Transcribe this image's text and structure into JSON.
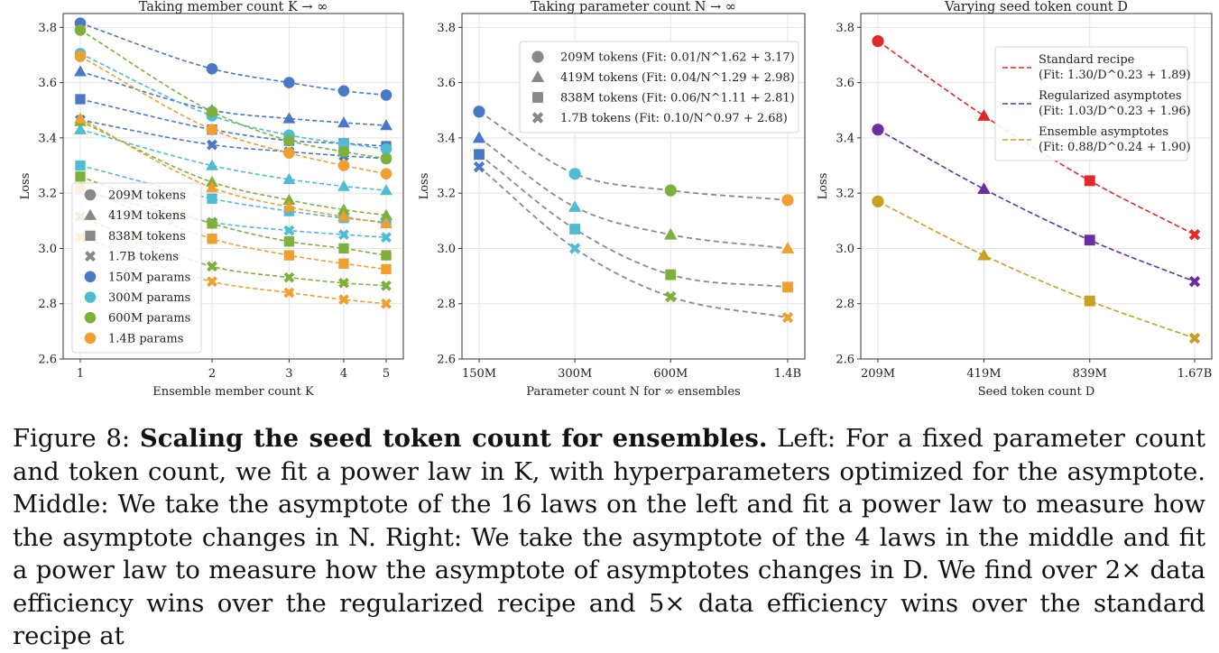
{
  "figure": {
    "label": "Figure 8:",
    "title": "Scaling the seed token count for ensembles.",
    "caption": "Left: For a fixed parameter count and token count, we fit a power law in K, with hyperparameters optimized for the asymptote. Middle: We take the asymptote of the 16 laws on the left and fit a power law to measure how the asymptote changes in N. Right: We take the asymptote of the 4 laws in the middle and fit a power law to measure how the asymptote of asymptotes changes in D. We find over 2× data efficiency wins over the regularized recipe and 5× data efficiency wins over the standard recipe at"
  },
  "colors": {
    "150M": "#4a78c9",
    "300M": "#4fbcd4",
    "600M": "#7fb03c",
    "1.4B": "#f0a030",
    "gray": "#888888",
    "standard": "#e02a2a",
    "regularized": "#6a2fa0",
    "ensemble": "#c9a021"
  },
  "chart_data": [
    {
      "type": "scatter",
      "title": "Taking member count K → ∞",
      "xlabel": "Ensemble member count K",
      "ylabel": "Loss",
      "x_scale": "log",
      "x": [
        1,
        2,
        3,
        4,
        5
      ],
      "xticks": [
        "1",
        "2",
        "3",
        "4",
        "5"
      ],
      "ylim": [
        2.6,
        3.85
      ],
      "yticks": [
        "2.6",
        "2.8",
        "3.0",
        "3.2",
        "3.4",
        "3.6",
        "3.8"
      ],
      "grid": true,
      "legend_position": "lower-left",
      "legend": [
        {
          "label": "209M tokens",
          "marker": "circle",
          "color": "#888888"
        },
        {
          "label": "419M tokens",
          "marker": "triangle",
          "color": "#888888"
        },
        {
          "label": "838M tokens",
          "marker": "square",
          "color": "#888888"
        },
        {
          "label": "1.7B tokens",
          "marker": "x",
          "color": "#888888"
        },
        {
          "label": "150M params",
          "marker": "circle",
          "color": "#4a78c9"
        },
        {
          "label": "300M params",
          "marker": "circle",
          "color": "#4fbcd4"
        },
        {
          "label": "600M params",
          "marker": "circle",
          "color": "#7fb03c"
        },
        {
          "label": "1.4B params",
          "marker": "circle",
          "color": "#f0a030"
        }
      ],
      "series": [
        {
          "params": "150M",
          "tokens": "209M",
          "marker": "circle",
          "values": [
            3.815,
            3.65,
            3.6,
            3.57,
            3.555
          ]
        },
        {
          "params": "150M",
          "tokens": "419M",
          "marker": "triangle",
          "values": [
            3.64,
            3.5,
            3.47,
            3.455,
            3.445
          ]
        },
        {
          "params": "150M",
          "tokens": "838M",
          "marker": "square",
          "values": [
            3.54,
            3.43,
            3.39,
            3.38,
            3.37
          ]
        },
        {
          "params": "150M",
          "tokens": "1.7B",
          "marker": "x",
          "values": [
            3.465,
            3.375,
            3.35,
            3.335,
            3.325
          ]
        },
        {
          "params": "300M",
          "tokens": "209M",
          "marker": "circle",
          "values": [
            3.705,
            3.48,
            3.41,
            3.38,
            3.36
          ]
        },
        {
          "params": "300M",
          "tokens": "419M",
          "marker": "triangle",
          "values": [
            3.43,
            3.3,
            3.25,
            3.225,
            3.21
          ]
        },
        {
          "params": "300M",
          "tokens": "838M",
          "marker": "square",
          "values": [
            3.3,
            3.18,
            3.135,
            3.11,
            3.095
          ]
        },
        {
          "params": "300M",
          "tokens": "1.7B",
          "marker": "x",
          "values": [
            3.21,
            3.095,
            3.065,
            3.05,
            3.04
          ]
        },
        {
          "params": "600M",
          "tokens": "209M",
          "marker": "circle",
          "values": [
            3.79,
            3.495,
            3.39,
            3.35,
            3.325
          ]
        },
        {
          "params": "600M",
          "tokens": "419M",
          "marker": "triangle",
          "values": [
            3.46,
            3.24,
            3.175,
            3.14,
            3.12
          ]
        },
        {
          "params": "600M",
          "tokens": "838M",
          "marker": "square",
          "values": [
            3.26,
            3.09,
            3.025,
            3.0,
            2.975
          ]
        },
        {
          "params": "600M",
          "tokens": "1.7B",
          "marker": "x",
          "values": [
            3.115,
            2.935,
            2.895,
            2.875,
            2.865
          ]
        },
        {
          "params": "1.4B",
          "tokens": "209M",
          "marker": "circle",
          "values": [
            3.695,
            3.43,
            3.345,
            3.3,
            3.27
          ]
        },
        {
          "params": "1.4B",
          "tokens": "419M",
          "marker": "triangle",
          "values": [
            3.47,
            3.22,
            3.15,
            3.115,
            3.09
          ]
        },
        {
          "params": "1.4B",
          "tokens": "838M",
          "marker": "square",
          "values": [
            3.22,
            3.035,
            2.975,
            2.945,
            2.925
          ]
        },
        {
          "params": "1.4B",
          "tokens": "1.7B",
          "marker": "x",
          "values": [
            3.04,
            2.88,
            2.84,
            2.815,
            2.8
          ]
        }
      ]
    },
    {
      "type": "scatter",
      "title": "Taking parameter count N → ∞",
      "xlabel": "Parameter count N for ∞ ensembles",
      "ylabel": "Loss",
      "x_scale": "log",
      "x": [
        150,
        300,
        600,
        1400
      ],
      "xticks": [
        "150M",
        "300M",
        "600M",
        "1.4B"
      ],
      "ylim": [
        2.6,
        3.85
      ],
      "yticks": [
        "2.6",
        "2.8",
        "3.0",
        "3.2",
        "3.4",
        "3.6",
        "3.8"
      ],
      "grid": true,
      "legend_position": "top-right",
      "legend": [
        {
          "label": "209M tokens (Fit: 0.01/N^1.62 + 3.17)",
          "marker": "circle",
          "color": "#888888"
        },
        {
          "label": "419M tokens (Fit: 0.04/N^1.29 + 2.98)",
          "marker": "triangle",
          "color": "#888888"
        },
        {
          "label": "838M tokens (Fit: 0.06/N^1.11 + 2.81)",
          "marker": "square",
          "color": "#888888"
        },
        {
          "label": "1.7B tokens (Fit: 0.10/N^0.97 + 2.68)",
          "marker": "x",
          "color": "#888888"
        }
      ],
      "point_colors": [
        "#4a78c9",
        "#4fbcd4",
        "#7fb03c",
        "#f0a030"
      ],
      "series": [
        {
          "tokens": "209M",
          "marker": "circle",
          "values": [
            3.495,
            3.27,
            3.21,
            3.175
          ]
        },
        {
          "tokens": "419M",
          "marker": "triangle",
          "values": [
            3.4,
            3.15,
            3.05,
            3.0
          ]
        },
        {
          "tokens": "838M",
          "marker": "square",
          "values": [
            3.34,
            3.07,
            2.905,
            2.86
          ]
        },
        {
          "tokens": "1.7B",
          "marker": "x",
          "values": [
            3.295,
            3.0,
            2.825,
            2.75
          ]
        }
      ]
    },
    {
      "type": "line",
      "title": "Varying seed token count D",
      "xlabel": "Seed token count D",
      "ylabel": "Loss",
      "x_scale": "log",
      "x": [
        209,
        419,
        839,
        1670
      ],
      "xticks": [
        "209M",
        "419M",
        "839M",
        "1.67B"
      ],
      "ylim": [
        2.6,
        3.85
      ],
      "yticks": [
        "2.6",
        "2.8",
        "3.0",
        "3.2",
        "3.4",
        "3.6",
        "3.8"
      ],
      "grid": true,
      "legend_position": "top-right",
      "point_markers": [
        "circle",
        "triangle",
        "square",
        "x"
      ],
      "series": [
        {
          "name_line1": "Standard recipe",
          "name_line2": "(Fit: 1.30/D^0.23 + 1.89)",
          "color": "#e02a2a",
          "values": [
            3.75,
            3.48,
            3.245,
            3.05
          ]
        },
        {
          "name_line1": "Regularized asymptotes",
          "name_line2": "(Fit: 1.03/D^0.23 + 1.96)",
          "color": "#6a2fa0",
          "values": [
            3.43,
            3.215,
            3.03,
            2.88
          ]
        },
        {
          "name_line1": "Ensemble asymptotes",
          "name_line2": "(Fit: 0.88/D^0.24 + 1.90)",
          "color": "#c9a021",
          "values": [
            3.17,
            2.975,
            2.81,
            2.675
          ]
        }
      ]
    }
  ]
}
